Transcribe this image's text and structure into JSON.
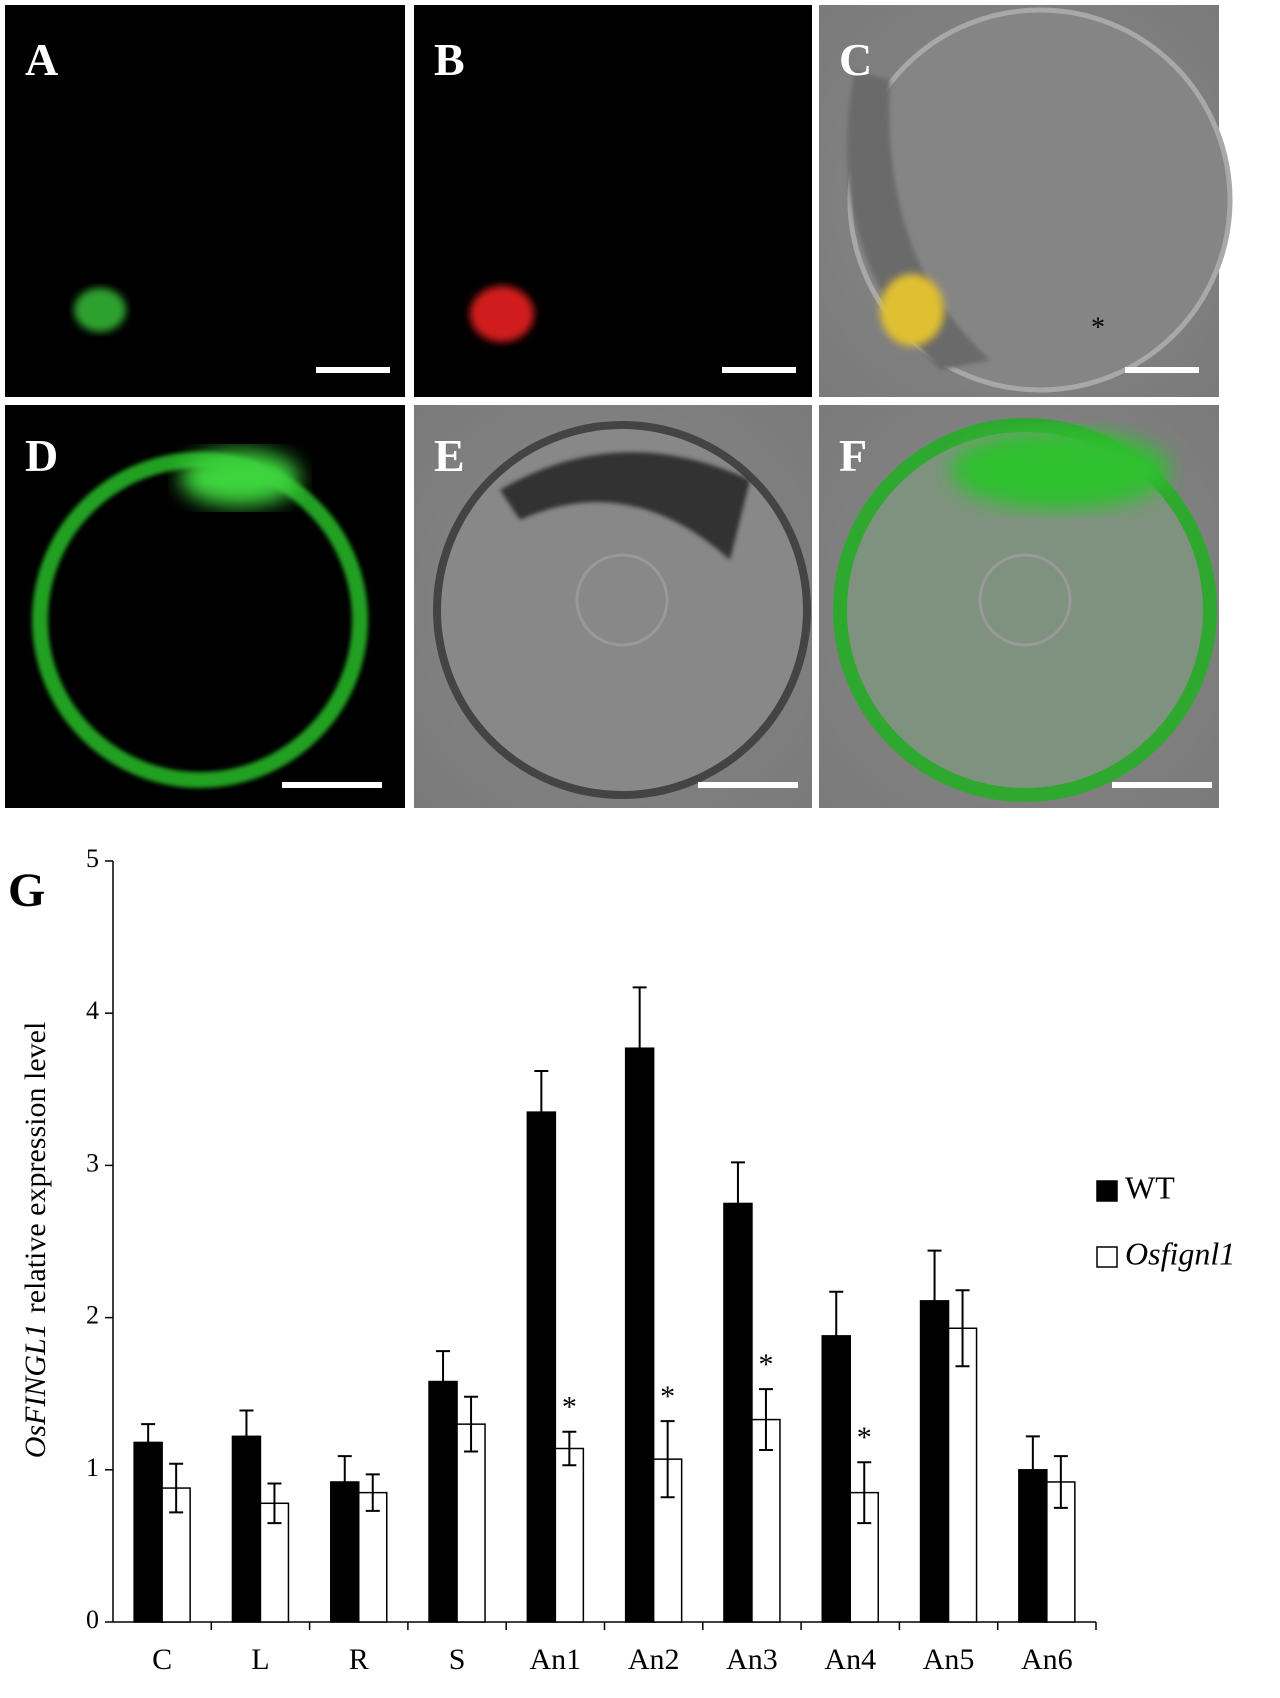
{
  "panels": {
    "labels": [
      "A",
      "B",
      "C",
      "D",
      "E",
      "F"
    ],
    "c_marker": "*"
  },
  "chart_data": {
    "type": "bar",
    "panel_label": "G",
    "ylabel": {
      "gene": "OsFINGL1",
      "text": "relative expression level"
    },
    "categories": [
      "C",
      "L",
      "R",
      "S",
      "An1",
      "An2",
      "An3",
      "An4",
      "An5",
      "An6"
    ],
    "series": [
      {
        "name": "WT",
        "color": "#000000",
        "values": [
          1.18,
          1.22,
          0.92,
          1.58,
          3.35,
          3.77,
          2.75,
          1.88,
          2.11,
          1.0
        ],
        "errors": [
          0.12,
          0.17,
          0.17,
          0.2,
          0.27,
          0.4,
          0.27,
          0.29,
          0.33,
          0.22
        ]
      },
      {
        "name": "Osfignl1",
        "color": "#ffffff",
        "values": [
          0.88,
          0.78,
          0.85,
          1.3,
          1.14,
          1.07,
          1.33,
          0.85,
          1.93,
          0.92
        ],
        "errors": [
          0.16,
          0.13,
          0.12,
          0.18,
          0.11,
          0.25,
          0.2,
          0.2,
          0.25,
          0.17
        ],
        "significance": [
          null,
          null,
          null,
          null,
          "*",
          "*",
          "*",
          "*",
          null,
          null
        ]
      }
    ],
    "ylim": [
      0,
      5
    ],
    "yticks": [
      0,
      1,
      2,
      3,
      4,
      5
    ],
    "grid": false,
    "legend": "right"
  }
}
